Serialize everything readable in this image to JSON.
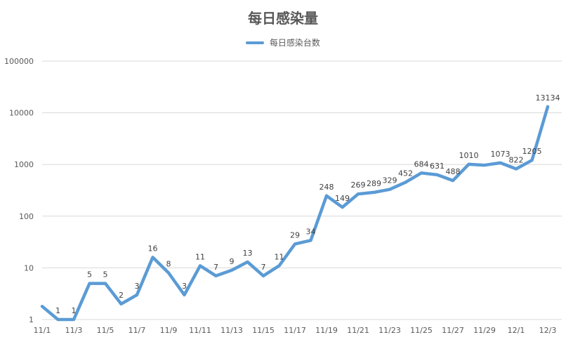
{
  "chart_data": {
    "type": "line",
    "title": "每日感染量",
    "xlabel": "",
    "ylabel": "",
    "y_scale": "log",
    "ylim": [
      1,
      100000
    ],
    "y_ticks": [
      1,
      10,
      100,
      1000,
      10000,
      100000
    ],
    "y_tick_labels": [
      "1",
      "10",
      "100",
      "1000",
      "10000",
      "100000"
    ],
    "grid": true,
    "legend_position": "top-center",
    "x": [
      "11/1",
      "11/2",
      "11/3",
      "11/4",
      "11/5",
      "11/6",
      "11/7",
      "11/8",
      "11/9",
      "11/10",
      "11/11",
      "11/12",
      "11/13",
      "11/14",
      "11/15",
      "11/16",
      "11/17",
      "11/18",
      "11/19",
      "11/20",
      "11/21",
      "11/22",
      "11/23",
      "11/24",
      "11/25",
      "11/26",
      "11/27",
      "11/28",
      "11/29",
      "11/30",
      "12/1",
      "12/2",
      "12/3"
    ],
    "x_tick_labels": [
      "11/1",
      "11/3",
      "11/5",
      "11/7",
      "11/9",
      "11/11",
      "11/13",
      "11/15",
      "11/17",
      "11/19",
      "11/21",
      "11/23",
      "11/25",
      "11/27",
      "11/29",
      "12/1",
      "12/3"
    ],
    "series": [
      {
        "name": "每日感染台数",
        "color": "#5b9bd5",
        "values": [
          1.8,
          1,
          1,
          5,
          5,
          2,
          3,
          16,
          8,
          3,
          11,
          7,
          9,
          13,
          7,
          11,
          29,
          34,
          248,
          149,
          269,
          289,
          329,
          452,
          684,
          631,
          488,
          1010,
          970,
          1073,
          822,
          1205,
          13134
        ],
        "data_labels": [
          "",
          "1",
          "1",
          "5",
          "5",
          "2",
          "3",
          "16",
          "8",
          "3",
          "11",
          "7",
          "9",
          "13",
          "7",
          "11",
          "29",
          "34",
          "248",
          "149",
          "269",
          "289",
          "329",
          "452",
          "684",
          "631",
          "488",
          "1010",
          "",
          "1073",
          "822",
          "1205",
          "13134"
        ]
      }
    ]
  }
}
